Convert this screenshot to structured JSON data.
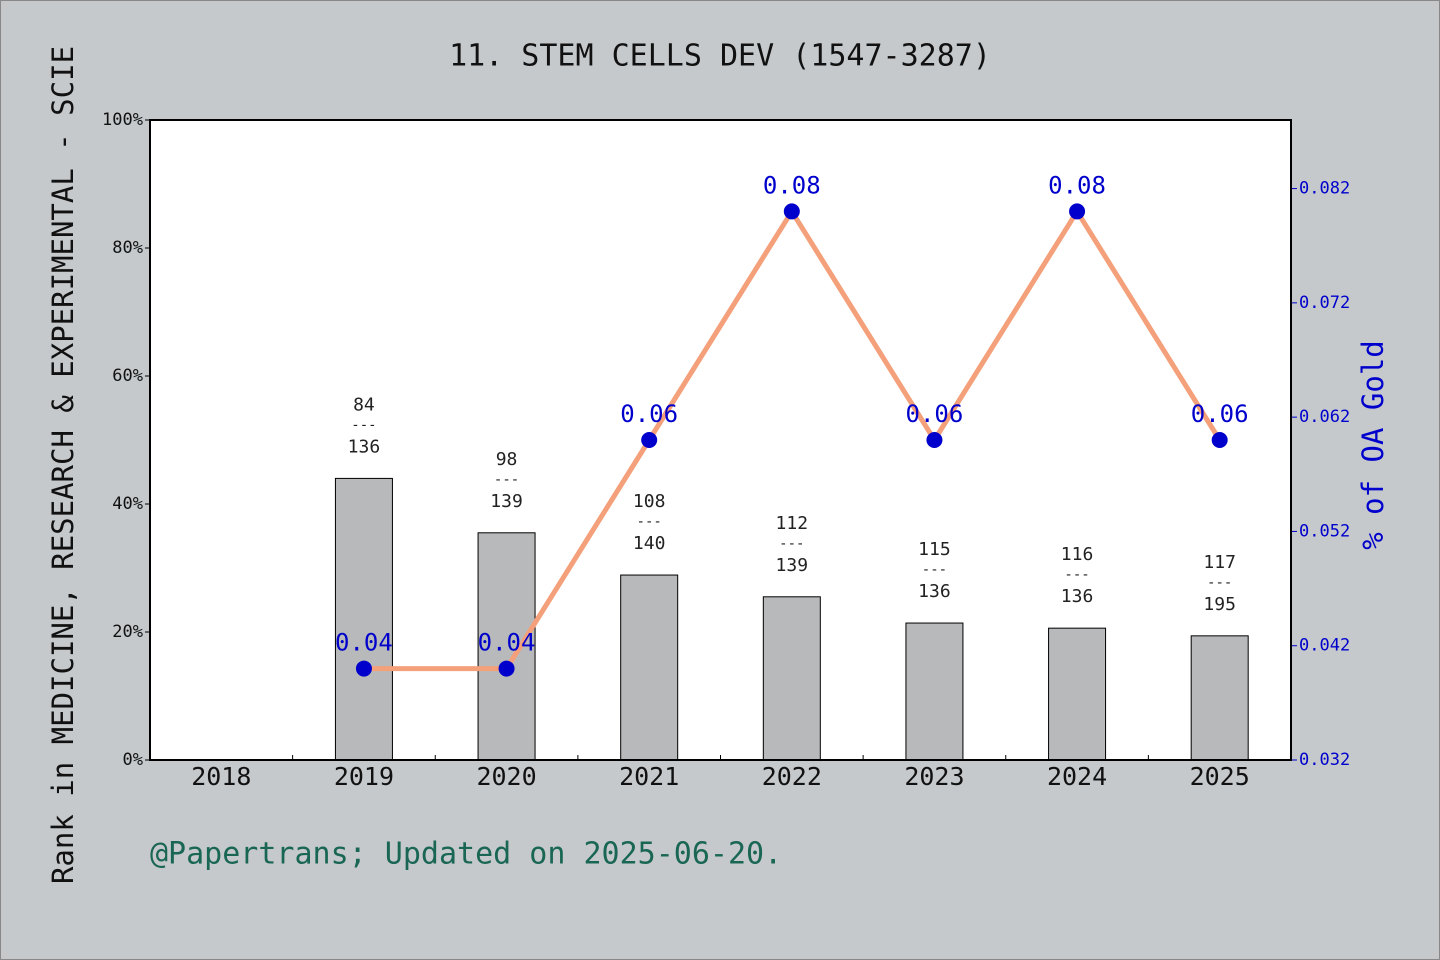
{
  "chart_data": {
    "type": "bar_line",
    "title": "11. STEM CELLS DEV (1547-3287)",
    "y_label": "Rank in MEDICINE, RESEARCH & EXPERIMENTAL - SCIE",
    "y2_label": "% of OA Gold",
    "footer": "@Papertrans; Updated on 2025-06-20.",
    "categories": [
      "2018",
      "2019",
      "2020",
      "2021",
      "2022",
      "2023",
      "2024",
      "2025"
    ],
    "series": [
      {
        "name": "Rank",
        "type": "bar",
        "color": "#b8b9ba",
        "values": [
          null,
          44,
          35.5,
          28.9,
          25.5,
          21.4,
          20.6,
          19.4
        ],
        "ranks": [
          null,
          84,
          98,
          108,
          112,
          115,
          116,
          117
        ],
        "totals": [
          null,
          136,
          139,
          140,
          139,
          136,
          136,
          195
        ],
        "separator": "---"
      },
      {
        "name": "% of OA Gold",
        "type": "line",
        "axis": "y2",
        "color": "#f4a07a",
        "marker_color": "#0000cc",
        "values": [
          null,
          0.04,
          0.04,
          0.06,
          0.08,
          0.06,
          0.08,
          0.06
        ]
      }
    ],
    "ylim": [
      0,
      100
    ],
    "yticks": [
      {
        "value": 0,
        "label": "0%"
      },
      {
        "value": 20,
        "label": "20%"
      },
      {
        "value": 40,
        "label": "40%"
      },
      {
        "value": 60,
        "label": "60%"
      },
      {
        "value": 80,
        "label": "80%"
      },
      {
        "value": 100,
        "label": "100%"
      }
    ],
    "y2lim": [
      0.032,
      0.088
    ],
    "y2ticks": [
      0.032,
      0.042,
      0.052,
      0.062,
      0.072,
      0.082
    ]
  }
}
